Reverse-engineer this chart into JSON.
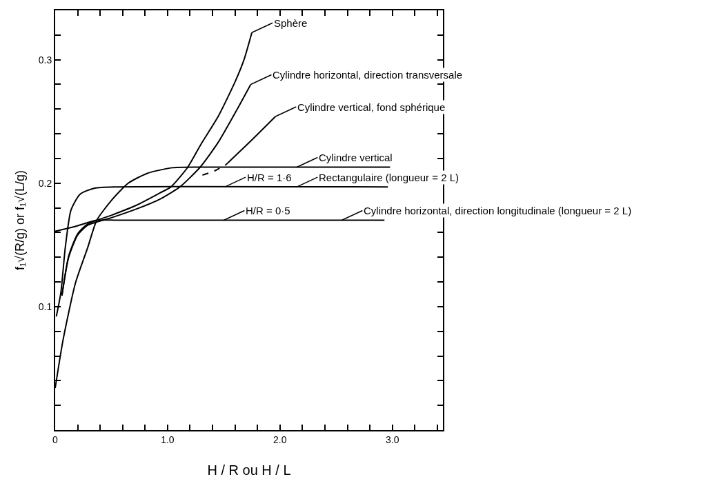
{
  "chart_data": {
    "type": "line",
    "xlabel": "H / R ou H / L",
    "ylabel": "f₁√(R/g) or f₁√(L/g)",
    "xlim": [
      0,
      3.45
    ],
    "ylim": [
      0,
      0.34
    ],
    "xticks": [
      {
        "value": 0,
        "label": "0"
      },
      {
        "value": 0.2,
        "label": null
      },
      {
        "value": 0.4,
        "label": null
      },
      {
        "value": 0.6,
        "label": null
      },
      {
        "value": 0.8,
        "label": null
      },
      {
        "value": 1.0,
        "label": "1.0"
      },
      {
        "value": 1.2,
        "label": null
      },
      {
        "value": 1.4,
        "label": null
      },
      {
        "value": 1.6,
        "label": null
      },
      {
        "value": 1.8,
        "label": null
      },
      {
        "value": 2.0,
        "label": "2.0"
      },
      {
        "value": 2.2,
        "label": null
      },
      {
        "value": 2.4,
        "label": null
      },
      {
        "value": 2.6,
        "label": null
      },
      {
        "value": 2.8,
        "label": null
      },
      {
        "value": 3.0,
        "label": "3.0"
      },
      {
        "value": 3.2,
        "label": null
      },
      {
        "value": 3.4,
        "label": null
      }
    ],
    "yticks": [
      {
        "value": 0.02,
        "label": null
      },
      {
        "value": 0.04,
        "label": null
      },
      {
        "value": 0.06,
        "label": null
      },
      {
        "value": 0.08,
        "label": null
      },
      {
        "value": 0.1,
        "label": "0.1"
      },
      {
        "value": 0.12,
        "label": null
      },
      {
        "value": 0.14,
        "label": null
      },
      {
        "value": 0.16,
        "label": null
      },
      {
        "value": 0.18,
        "label": null
      },
      {
        "value": 0.2,
        "label": "0.2"
      },
      {
        "value": 0.22,
        "label": null
      },
      {
        "value": 0.24,
        "label": null
      },
      {
        "value": 0.26,
        "label": null
      },
      {
        "value": 0.28,
        "label": null
      },
      {
        "value": 0.3,
        "label": "0.3"
      },
      {
        "value": 0.32,
        "label": null
      }
    ],
    "series": [
      {
        "color": "#000000",
        "x": [
          0.06,
          0.12,
          0.2,
          0.29,
          0.5,
          0.72,
          0.93,
          1.03,
          1.18,
          1.3,
          1.45,
          1.6,
          1.68,
          1.75
        ],
        "values": [
          0.109,
          0.141,
          0.159,
          0.167,
          0.174,
          0.182,
          0.192,
          0.197,
          0.213,
          0.232,
          0.254,
          0.282,
          0.3,
          0.322
        ]
      },
      {
        "color": "#000000",
        "x": [
          0.06,
          0.12,
          0.2,
          0.29,
          0.5,
          0.72,
          0.93,
          1.11,
          1.29,
          1.45,
          1.62,
          1.74
        ],
        "values": [
          0.109,
          0.14,
          0.158,
          0.166,
          0.172,
          0.179,
          0.187,
          0.197,
          0.213,
          0.233,
          0.26,
          0.28
        ]
      },
      {
        "color": "#000000",
        "x": [
          1.52,
          1.75,
          1.96
        ],
        "values": [
          0.215,
          0.235,
          0.254
        ]
      },
      {
        "color": "#000000",
        "line_style": "dashed",
        "x": [
          1.31,
          1.42,
          1.52
        ],
        "values": [
          0.2065,
          0.21,
          0.215
        ]
      },
      {
        "color": "#000000",
        "x": [
          0,
          0.07,
          0.18,
          0.29,
          0.37,
          0.5,
          0.65,
          0.82,
          1.04,
          1.3,
          2.98
        ],
        "values": [
          0.034,
          0.073,
          0.119,
          0.148,
          0.17,
          0.186,
          0.2,
          0.208,
          0.2125,
          0.213,
          0.213
        ]
      },
      {
        "color": "#000000",
        "x": [
          0.01,
          0.05,
          0.09,
          0.14,
          0.22,
          0.35,
          0.55,
          2.96
        ],
        "values": [
          0.092,
          0.111,
          0.148,
          0.178,
          0.191,
          0.196,
          0.197,
          0.197
        ]
      },
      {
        "color": "#000000",
        "x": [
          0,
          0.18,
          0.37,
          0.55,
          2.93
        ],
        "values": [
          0.161,
          0.165,
          0.17,
          0.17,
          0.17
        ]
      }
    ],
    "annotations": [
      {
        "text": "Sphère",
        "x": 1.75,
        "y": 0.322
      },
      {
        "text": "Cylindre horizontal, direction transversale",
        "x": 1.74,
        "y": 0.28
      },
      {
        "text": "Cylindre vertical, fond sphérique",
        "x": 1.96,
        "y": 0.254
      },
      {
        "text": "Cylindre vertical",
        "x": 2.15,
        "y": 0.213
      },
      {
        "text": "Rectangulaire (longueur = 2 L)",
        "x": 2.15,
        "y": 0.197
      },
      {
        "text": "H/R = 1·6",
        "x": 1.51,
        "y": 0.197
      },
      {
        "text": "H/R = 0·5",
        "x": 1.5,
        "y": 0.17
      },
      {
        "text": "Cylindre horizontal, direction longitudinale (longueur = 2 L)",
        "x": 2.55,
        "y": 0.17
      }
    ]
  }
}
